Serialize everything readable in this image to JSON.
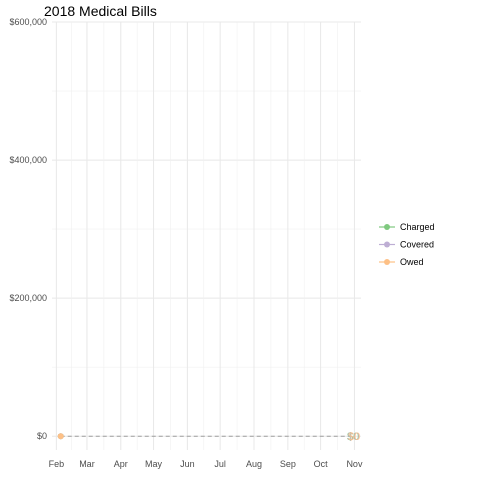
{
  "chart_data": {
    "type": "line",
    "title": "2018 Medical Bills",
    "xlabel": "",
    "ylabel": "",
    "x_ticks": [
      "Feb",
      "Mar",
      "Apr",
      "May",
      "Jun",
      "Jul",
      "Aug",
      "Sep",
      "Oct",
      "Nov"
    ],
    "xlim": [
      "2018-01-28",
      "2018-11-07"
    ],
    "y_ticks": [
      0,
      200000,
      400000,
      600000
    ],
    "y_tick_labels": [
      "$0",
      "$200,000",
      "$400,000",
      "$600,000"
    ],
    "ylim": [
      -20000,
      600000
    ],
    "grid": true,
    "legend_position": "right",
    "series": [
      {
        "name": "Charged",
        "color": "#7fc97f",
        "x": [
          "2018-02-05"
        ],
        "y": [
          0
        ],
        "end_label": "$0"
      },
      {
        "name": "Covered",
        "color": "#beaed4",
        "x": [
          "2018-02-05"
        ],
        "y": [
          0
        ],
        "end_label": "$0"
      },
      {
        "name": "Owed",
        "color": "#fdc086",
        "x": [
          "2018-02-05"
        ],
        "y": [
          0
        ],
        "end_label": "$0"
      }
    ],
    "reference_line": {
      "y": 0,
      "color": "#9e9e9e",
      "style": "dashed"
    }
  }
}
